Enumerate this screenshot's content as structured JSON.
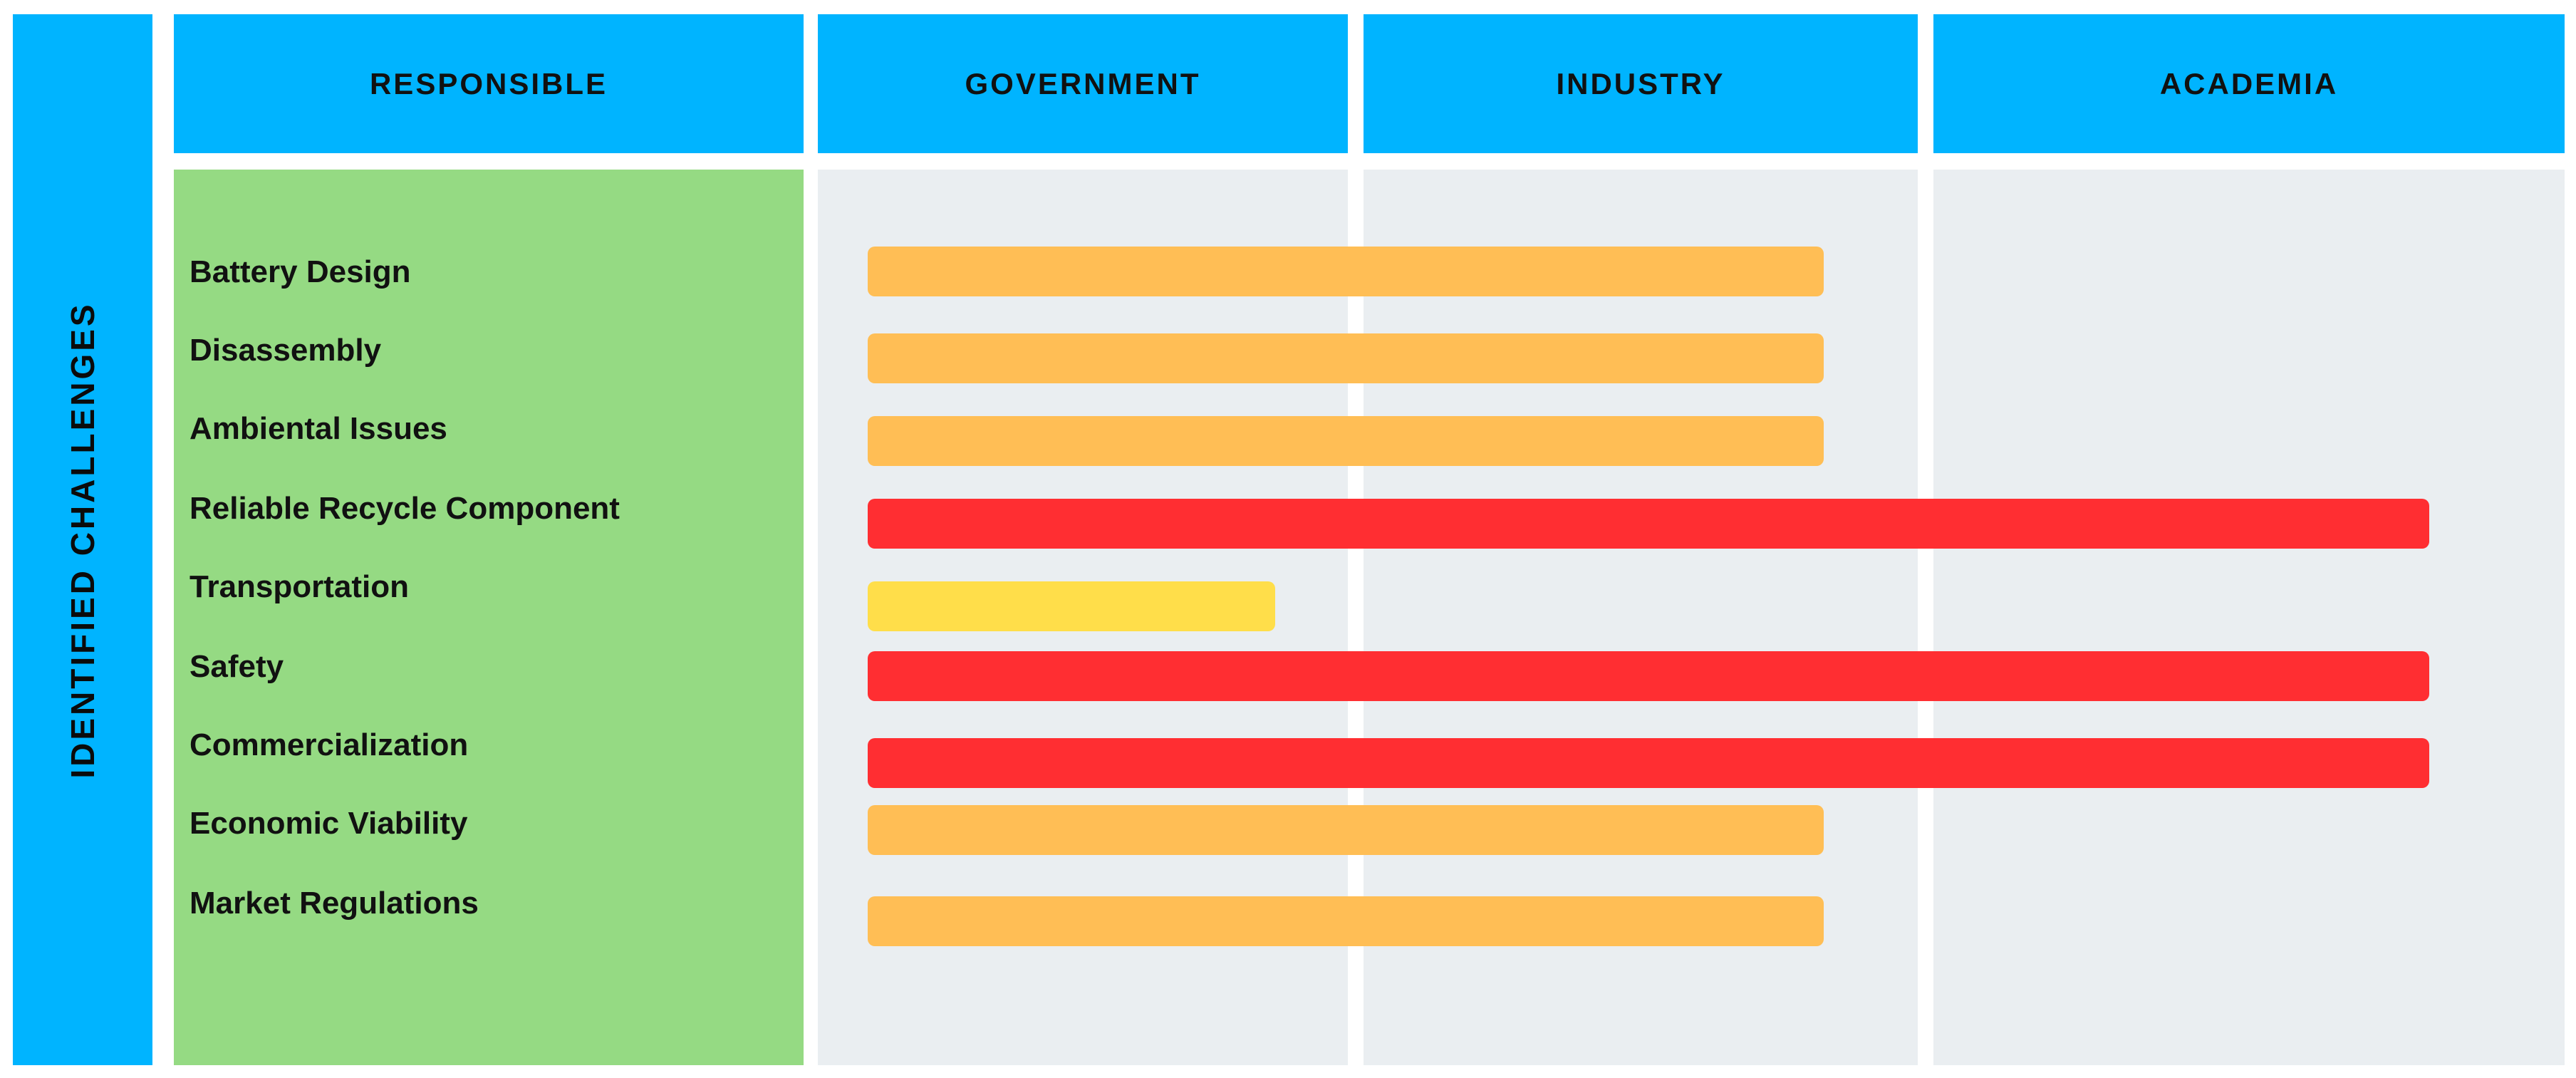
{
  "side_label": "IDENTIFIED CHALLENGES",
  "headers": [
    "RESPONSIBLE",
    "GOVERNMENT",
    "INDUSTRY",
    "ACADEMIA"
  ],
  "stakeholders": [
    "GOVERNMENT",
    "INDUSTRY",
    "ACADEMIA"
  ],
  "colors": {
    "header": "#00b4ff",
    "challenges_panel": "#95da83",
    "column_bg": "#eaeef1",
    "bar_orange": "#ffbe55",
    "bar_red": "#ff2e32",
    "bar_yellow": "#ffde4a"
  },
  "challenges": [
    {
      "label": "Battery Design",
      "responsible": [
        "GOVERNMENT",
        "INDUSTRY"
      ],
      "color": "#ffbe55"
    },
    {
      "label": "Disassembly",
      "responsible": [
        "GOVERNMENT",
        "INDUSTRY"
      ],
      "color": "#ffbe55"
    },
    {
      "label": "Ambiental Issues",
      "responsible": [
        "GOVERNMENT",
        "INDUSTRY"
      ],
      "color": "#ffbe55"
    },
    {
      "label": "Reliable Recycle Component",
      "responsible": [
        "GOVERNMENT",
        "INDUSTRY",
        "ACADEMIA"
      ],
      "color": "#ff2e32"
    },
    {
      "label": "Transportation",
      "responsible": [
        "GOVERNMENT"
      ],
      "color": "#ffde4a"
    },
    {
      "label": "Safety",
      "responsible": [
        "GOVERNMENT",
        "INDUSTRY",
        "ACADEMIA"
      ],
      "color": "#ff2e32"
    },
    {
      "label": "Commercialization",
      "responsible": [
        "GOVERNMENT",
        "INDUSTRY",
        "ACADEMIA"
      ],
      "color": "#ff2e32"
    },
    {
      "label": "Economic Viability",
      "responsible": [
        "GOVERNMENT",
        "INDUSTRY"
      ],
      "color": "#ffbe55"
    },
    {
      "label": "Market Regulations",
      "responsible": [
        "GOVERNMENT",
        "INDUSTRY"
      ],
      "color": "#ffbe55"
    }
  ]
}
